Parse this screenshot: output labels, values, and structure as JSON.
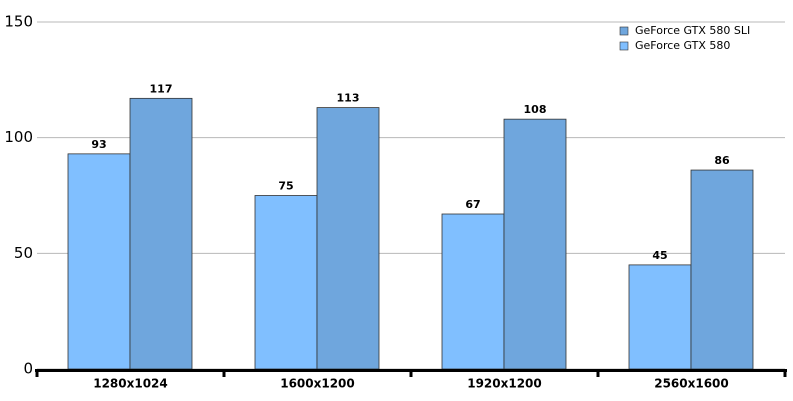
{
  "chart_data": {
    "type": "bar",
    "categories": [
      "1280x1024",
      "1600x1200",
      "1920x1200",
      "2560x1600"
    ],
    "series": [
      {
        "name": "GeForce GTX 580 SLI",
        "color": "#6fa6dd",
        "values": [
          117,
          113,
          108,
          86
        ]
      },
      {
        "name": "GeForce GTX 580",
        "color": "#80bfff",
        "values": [
          93,
          75,
          67,
          45
        ]
      }
    ],
    "ylim": [
      0,
      150
    ],
    "yticks": [
      0,
      50,
      100,
      150
    ],
    "grid": true,
    "legend": "top-right"
  }
}
